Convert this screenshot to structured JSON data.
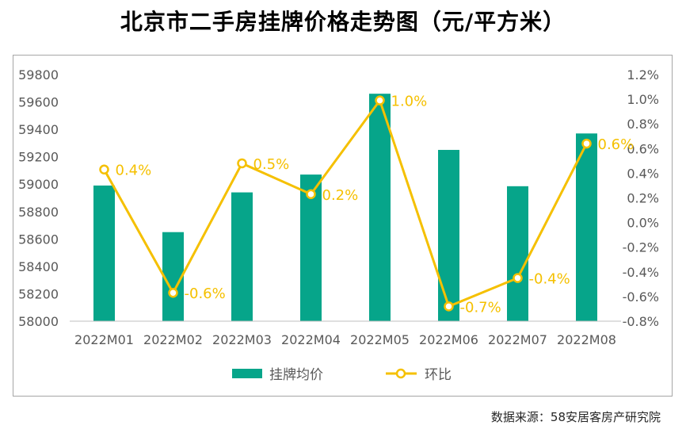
{
  "title": "北京市二手房挂牌价格走势图（元/平方米）",
  "source": "数据来源：58安居客房产研究院",
  "colors": {
    "bar": "#06a58a",
    "line": "#f5c000",
    "axis_text": "#595959",
    "label": "#f5c000"
  },
  "chart_data": {
    "type": "bar+line",
    "title": "北京市二手房挂牌价格走势图（元/平方米）",
    "categories": [
      "2022M01",
      "2022M02",
      "2022M03",
      "2022M04",
      "2022M05",
      "2022M06",
      "2022M07",
      "2022M08"
    ],
    "series": [
      {
        "name": "挂牌均价",
        "type": "bar",
        "axis": "left",
        "values": [
          58990,
          58650,
          58940,
          59070,
          59660,
          59250,
          58985,
          59370
        ]
      },
      {
        "name": "环比",
        "type": "line",
        "axis": "right",
        "values": [
          0.43,
          -0.57,
          0.48,
          0.23,
          0.99,
          -0.68,
          -0.45,
          0.64
        ],
        "labels": [
          "0.4%",
          "-0.6%",
          "0.5%",
          "0.2%",
          "1.0%",
          "-0.7%",
          "-0.4%",
          "0.6%"
        ]
      }
    ],
    "y_left": {
      "min": 58000,
      "max": 59800,
      "step": 200,
      "ticks": [
        "58000",
        "58200",
        "58400",
        "58600",
        "58800",
        "59000",
        "59200",
        "59400",
        "59600",
        "59800"
      ]
    },
    "y_right": {
      "min": -0.8,
      "max": 1.2,
      "step": 0.2,
      "ticks": [
        "-0.8%",
        "-0.6%",
        "-0.4%",
        "-0.2%",
        "0.0%",
        "0.2%",
        "0.4%",
        "0.6%",
        "0.8%",
        "1.0%",
        "1.2%"
      ]
    },
    "legend": {
      "placement": "bottom",
      "items": [
        "挂牌均价",
        "环比"
      ]
    },
    "grid": false
  }
}
